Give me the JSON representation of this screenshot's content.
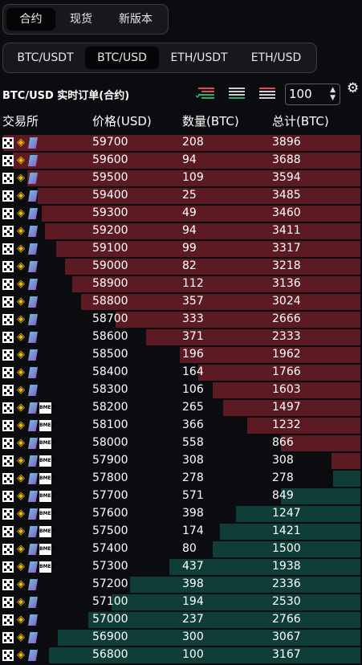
{
  "top_tabs": [
    "合约",
    "现货",
    "新版本"
  ],
  "top_active": 0,
  "pair_tabs": [
    "BTC/USDT",
    "BTC/USD",
    "ETH/USDT",
    "ETH/USD"
  ],
  "pair_active": 1,
  "title": "BTC/USD 实时订单(合约)",
  "depth_value": "100",
  "headers": {
    "exchange": "交易所",
    "price": "价格(USD)",
    "quantity": "数量(BTC)",
    "total": "总计(BTC)"
  },
  "colors": {
    "ask_bar": "#5c1a23",
    "bid_bar": "#0f3d38",
    "background": "#0b0c0f"
  },
  "exchange_icons": [
    "okx-icon",
    "binance-icon",
    "ftx-icon",
    "bitmex-icon"
  ],
  "bit_badge_text": "BMEX",
  "asks": [
    {
      "price": "59700",
      "qty": "208",
      "total": "3896",
      "bar": 0.99,
      "exch": 3
    },
    {
      "price": "59600",
      "qty": "94",
      "total": "3688",
      "bar": 0.965,
      "exch": 3
    },
    {
      "price": "59500",
      "qty": "109",
      "total": "3594",
      "bar": 0.925,
      "exch": 3
    },
    {
      "price": "59400",
      "qty": "25",
      "total": "3485",
      "bar": 0.895,
      "exch": 3
    },
    {
      "price": "59300",
      "qty": "49",
      "total": "3460",
      "bar": 0.885,
      "exch": 3
    },
    {
      "price": "59200",
      "qty": "94",
      "total": "3411",
      "bar": 0.875,
      "exch": 3
    },
    {
      "price": "59100",
      "qty": "99",
      "total": "3317",
      "bar": 0.845,
      "exch": 3
    },
    {
      "price": "59000",
      "qty": "82",
      "total": "3218",
      "bar": 0.82,
      "exch": 3
    },
    {
      "price": "58900",
      "qty": "112",
      "total": "3136",
      "bar": 0.8,
      "exch": 3
    },
    {
      "price": "58800",
      "qty": "357",
      "total": "3024",
      "bar": 0.775,
      "exch": 3
    },
    {
      "price": "58700",
      "qty": "333",
      "total": "2666",
      "bar": 0.68,
      "exch": 3
    },
    {
      "price": "58600",
      "qty": "371",
      "total": "2333",
      "bar": 0.595,
      "exch": 3
    },
    {
      "price": "58500",
      "qty": "196",
      "total": "1962",
      "bar": 0.5,
      "exch": 3
    },
    {
      "price": "58400",
      "qty": "164",
      "total": "1766",
      "bar": 0.45,
      "exch": 3
    },
    {
      "price": "58300",
      "qty": "106",
      "total": "1603",
      "bar": 0.41,
      "exch": 3
    },
    {
      "price": "58200",
      "qty": "265",
      "total": "1497",
      "bar": 0.38,
      "exch": 4
    },
    {
      "price": "58100",
      "qty": "366",
      "total": "1232",
      "bar": 0.315,
      "exch": 4
    },
    {
      "price": "58000",
      "qty": "558",
      "total": "866",
      "bar": 0.22,
      "exch": 4
    },
    {
      "price": "57900",
      "qty": "308",
      "total": "308",
      "bar": 0.08,
      "exch": 4
    }
  ],
  "bids": [
    {
      "price": "57800",
      "qty": "278",
      "total": "278",
      "bar": 0.075,
      "exch": 4
    },
    {
      "price": "57700",
      "qty": "571",
      "total": "849",
      "bar": 0.22,
      "exch": 4
    },
    {
      "price": "57600",
      "qty": "398",
      "total": "1247",
      "bar": 0.345,
      "exch": 4
    },
    {
      "price": "57500",
      "qty": "174",
      "total": "1421",
      "bar": 0.39,
      "exch": 4
    },
    {
      "price": "57400",
      "qty": "80",
      "total": "1500",
      "bar": 0.41,
      "exch": 4
    },
    {
      "price": "57300",
      "qty": "437",
      "total": "1938",
      "bar": 0.53,
      "exch": 4
    },
    {
      "price": "57200",
      "qty": "398",
      "total": "2336",
      "bar": 0.64,
      "exch": 3
    },
    {
      "price": "57100",
      "qty": "194",
      "total": "2530",
      "bar": 0.69,
      "exch": 3
    },
    {
      "price": "57000",
      "qty": "237",
      "total": "2766",
      "bar": 0.755,
      "exch": 3
    },
    {
      "price": "56900",
      "qty": "300",
      "total": "3067",
      "bar": 0.84,
      "exch": 3
    },
    {
      "price": "56800",
      "qty": "100",
      "total": "3167",
      "bar": 0.865,
      "exch": 3
    }
  ]
}
